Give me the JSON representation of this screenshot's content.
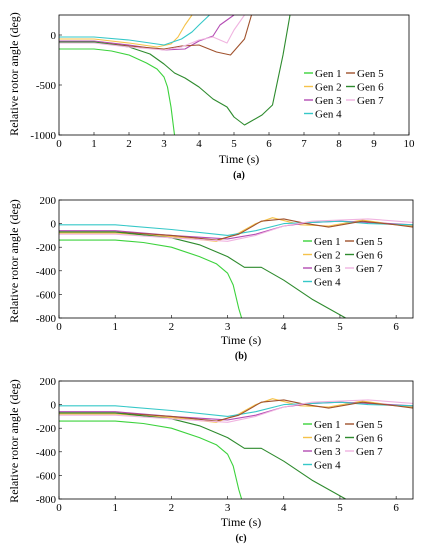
{
  "figure": {
    "common": {
      "ylabel": "Relative rotor angle (deg)",
      "xlabel": "Time (s)",
      "legend_cols": [
        [
          "Gen 1",
          "Gen 2",
          "Gen 3",
          "Gen 4"
        ],
        [
          "Gen 5",
          "Gen 6",
          "Gen 7"
        ]
      ]
    }
  },
  "chart_data": [
    {
      "type": "line",
      "panel_label": "(a)",
      "xlabel": "Time (s)",
      "ylabel": "Relative rotor angle (deg)",
      "xlim": [
        0,
        10
      ],
      "ylim": [
        -1000,
        200
      ],
      "xticks": [
        0,
        1,
        2,
        3,
        4,
        5,
        6,
        7,
        8,
        9,
        10
      ],
      "yticks": [
        -1000,
        -500,
        0
      ],
      "legend_placement": "right",
      "series": [
        {
          "name": "Gen 1",
          "color": "#3cd23c",
          "x": [
            0,
            1,
            1.5,
            2,
            2.5,
            2.8,
            3.0,
            3.1,
            3.2,
            3.3
          ],
          "y": [
            -140,
            -140,
            -160,
            -200,
            -280,
            -340,
            -420,
            -520,
            -720,
            -1000
          ]
        },
        {
          "name": "Gen 2",
          "color": "#f5c24a",
          "x": [
            0,
            1,
            2,
            2.8,
            3.2,
            3.4,
            3.6,
            3.8
          ],
          "y": [
            -40,
            -40,
            -80,
            -120,
            -90,
            -20,
            100,
            200
          ]
        },
        {
          "name": "Gen 3",
          "color": "#b44cb4",
          "x": [
            0,
            1,
            2,
            3,
            3.6,
            4,
            4.4,
            4.6,
            4.8,
            5.0
          ],
          "y": [
            -60,
            -60,
            -100,
            -150,
            -140,
            -60,
            -10,
            100,
            150,
            200
          ]
        },
        {
          "name": "Gen 4",
          "color": "#36c8c8",
          "x": [
            0,
            1,
            2,
            3,
            3.5,
            3.8,
            4.0,
            4.3
          ],
          "y": [
            -20,
            -20,
            -50,
            -100,
            -40,
            30,
            100,
            200
          ]
        },
        {
          "name": "Gen 5",
          "color": "#a0522d",
          "x": [
            0,
            1,
            2,
            3,
            3.5,
            4,
            4.5,
            4.9,
            5.3,
            5.5
          ],
          "y": [
            -70,
            -70,
            -110,
            -140,
            -110,
            -100,
            -170,
            -200,
            -40,
            200
          ]
        },
        {
          "name": "Gen 6",
          "color": "#2e8b2e",
          "x": [
            0,
            1,
            2,
            2.6,
            3.0,
            3.3,
            3.6,
            4.0,
            4.4,
            4.8,
            5.0,
            5.3,
            5.5,
            5.8,
            6.1,
            6.4,
            6.6
          ],
          "y": [
            -70,
            -70,
            -120,
            -190,
            -290,
            -380,
            -430,
            -520,
            -640,
            -720,
            -820,
            -900,
            -860,
            -800,
            -700,
            -200,
            200
          ]
        },
        {
          "name": "Gen 7",
          "color": "#f0b4e0",
          "x": [
            0,
            1,
            2,
            3,
            3.5,
            4,
            4.4,
            4.8,
            5.0,
            5.3
          ],
          "y": [
            -80,
            -80,
            -120,
            -150,
            -120,
            -50,
            -20,
            -80,
            50,
            200
          ]
        }
      ]
    },
    {
      "type": "line",
      "panel_label": "(b)",
      "xlabel": "Time (s)",
      "ylabel": "Relative rotor angle (deg)",
      "xlim": [
        0,
        6.3
      ],
      "ylim": [
        -800,
        200
      ],
      "xticks": [
        0,
        1,
        2,
        3,
        4,
        5,
        6
      ],
      "yticks": [
        -800,
        -600,
        -400,
        -200,
        0,
        200
      ],
      "legend_placement": "bottom-right",
      "series": [
        {
          "name": "Gen 1",
          "color": "#3cd23c",
          "x": [
            0,
            1,
            1.5,
            2,
            2.5,
            2.8,
            3.0,
            3.1,
            3.2,
            3.25
          ],
          "y": [
            -140,
            -140,
            -160,
            -200,
            -280,
            -340,
            -420,
            -520,
            -720,
            -800
          ]
        },
        {
          "name": "Gen 2",
          "color": "#f5c24a",
          "x": [
            0,
            1,
            2,
            2.8,
            3.2,
            3.5,
            3.8,
            4.3,
            4.8,
            5.4,
            6.0,
            6.3
          ],
          "y": [
            -80,
            -80,
            -110,
            -150,
            -80,
            0,
            50,
            -10,
            -20,
            30,
            -10,
            -20
          ]
        },
        {
          "name": "Gen 3",
          "color": "#b44cb4",
          "x": [
            0,
            1,
            2,
            3,
            3.5,
            4,
            4.5,
            5,
            5.5,
            6.3
          ],
          "y": [
            -60,
            -60,
            -100,
            -130,
            -90,
            -20,
            10,
            20,
            10,
            -10
          ]
        },
        {
          "name": "Gen 4",
          "color": "#36c8c8",
          "x": [
            0,
            1,
            2,
            3,
            3.5,
            4,
            4.5,
            5,
            5.5,
            6.3
          ],
          "y": [
            -10,
            -10,
            -50,
            -100,
            -60,
            0,
            10,
            20,
            0,
            -10
          ]
        },
        {
          "name": "Gen 5",
          "color": "#a0522d",
          "x": [
            0,
            1,
            2,
            2.8,
            3.2,
            3.6,
            4.0,
            4.4,
            4.8,
            5.4,
            6.0,
            6.3
          ],
          "y": [
            -70,
            -70,
            -100,
            -140,
            -90,
            20,
            40,
            0,
            -30,
            20,
            -10,
            -30
          ]
        },
        {
          "name": "Gen 6",
          "color": "#2e8b2e",
          "x": [
            0,
            1,
            2,
            2.5,
            3.0,
            3.3,
            3.6,
            4.0,
            4.5,
            5.1
          ],
          "y": [
            -70,
            -70,
            -120,
            -180,
            -280,
            -370,
            -370,
            -480,
            -640,
            -800
          ]
        },
        {
          "name": "Gen 7",
          "color": "#f0b4e0",
          "x": [
            0,
            1,
            2,
            3,
            3.5,
            4,
            4.5,
            5,
            5.5,
            6.3
          ],
          "y": [
            -90,
            -90,
            -120,
            -150,
            -100,
            -20,
            20,
            30,
            40,
            10
          ]
        }
      ]
    },
    {
      "type": "line",
      "panel_label": "(c)",
      "xlabel": "Time (s)",
      "ylabel": "Relative rotor angle (deg)",
      "xlim": [
        0,
        6.3
      ],
      "ylim": [
        -800,
        200
      ],
      "xticks": [
        0,
        1,
        2,
        3,
        4,
        5,
        6
      ],
      "yticks": [
        -800,
        -600,
        -400,
        -200,
        0,
        200
      ],
      "legend_placement": "bottom-right",
      "series": [
        {
          "name": "Gen 1",
          "color": "#3cd23c",
          "x": [
            0,
            1,
            1.5,
            2,
            2.5,
            2.8,
            3.0,
            3.1,
            3.2,
            3.25
          ],
          "y": [
            -140,
            -140,
            -160,
            -200,
            -280,
            -340,
            -420,
            -520,
            -720,
            -800
          ]
        },
        {
          "name": "Gen 2",
          "color": "#f5c24a",
          "x": [
            0,
            1,
            2,
            2.8,
            3.2,
            3.5,
            3.8,
            4.3,
            4.8,
            5.4,
            6.0,
            6.3
          ],
          "y": [
            -80,
            -80,
            -110,
            -150,
            -80,
            0,
            50,
            -10,
            -20,
            30,
            -10,
            -20
          ]
        },
        {
          "name": "Gen 3",
          "color": "#b44cb4",
          "x": [
            0,
            1,
            2,
            3,
            3.5,
            4,
            4.5,
            5,
            5.5,
            6.3
          ],
          "y": [
            -60,
            -60,
            -100,
            -130,
            -90,
            -20,
            10,
            20,
            10,
            -10
          ]
        },
        {
          "name": "Gen 4",
          "color": "#36c8c8",
          "x": [
            0,
            1,
            2,
            3,
            3.5,
            4,
            4.5,
            5,
            5.5,
            6.3
          ],
          "y": [
            -10,
            -10,
            -50,
            -100,
            -60,
            0,
            10,
            20,
            0,
            -10
          ]
        },
        {
          "name": "Gen 5",
          "color": "#a0522d",
          "x": [
            0,
            1,
            2,
            2.8,
            3.2,
            3.6,
            4.0,
            4.4,
            4.8,
            5.4,
            6.0,
            6.3
          ],
          "y": [
            -70,
            -70,
            -100,
            -140,
            -90,
            20,
            40,
            0,
            -30,
            20,
            -10,
            -30
          ]
        },
        {
          "name": "Gen 6",
          "color": "#2e8b2e",
          "x": [
            0,
            1,
            2,
            2.5,
            3.0,
            3.3,
            3.6,
            4.0,
            4.5,
            5.1
          ],
          "y": [
            -70,
            -70,
            -120,
            -180,
            -280,
            -370,
            -370,
            -480,
            -640,
            -800
          ]
        },
        {
          "name": "Gen 7",
          "color": "#f0b4e0",
          "x": [
            0,
            1,
            2,
            3,
            3.5,
            4,
            4.5,
            5,
            5.5,
            6.3
          ],
          "y": [
            -90,
            -90,
            -120,
            -150,
            -100,
            -20,
            20,
            30,
            40,
            10
          ]
        }
      ]
    }
  ]
}
